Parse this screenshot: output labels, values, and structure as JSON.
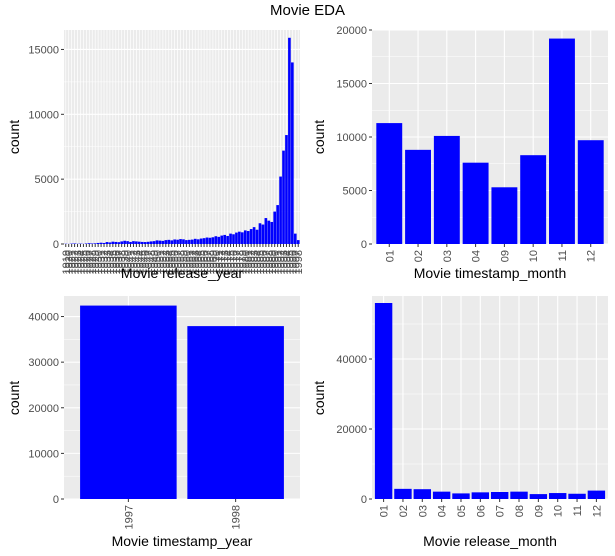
{
  "figure": {
    "title": "Movie EDA"
  },
  "colors": {
    "bar": "#0000ff",
    "panel_bg": "#ebebeb",
    "grid": "#ffffff",
    "tick_text": "#4d4d4d",
    "tick_mark": "#333333"
  },
  "chart_data": [
    {
      "type": "bar",
      "title": "",
      "xlabel": "Movie release_year",
      "ylabel": "count",
      "ylim": [
        0,
        16500
      ],
      "yticks": [
        0,
        5000,
        10000,
        15000
      ],
      "x_tick_labels_legible": false,
      "categories": [
        "1919",
        "1920",
        "1921",
        "1922",
        "1923",
        "1924",
        "1925",
        "1926",
        "1927",
        "1928",
        "1929",
        "1930",
        "1931",
        "1932",
        "1933",
        "1934",
        "1935",
        "1936",
        "1937",
        "1938",
        "1939",
        "1940",
        "1941",
        "1942",
        "1943",
        "1944",
        "1945",
        "1946",
        "1947",
        "1948",
        "1949",
        "1950",
        "1951",
        "1952",
        "1953",
        "1954",
        "1955",
        "1956",
        "1957",
        "1958",
        "1959",
        "1960",
        "1961",
        "1962",
        "1963",
        "1964",
        "1965",
        "1966",
        "1967",
        "1968",
        "1969",
        "1970",
        "1971",
        "1972",
        "1973",
        "1974",
        "1975",
        "1976",
        "1977",
        "1978",
        "1979",
        "1980",
        "1981",
        "1982",
        "1983",
        "1984",
        "1985",
        "1986",
        "1987",
        "1988",
        "1989",
        "1990",
        "1991",
        "1992",
        "1993",
        "1994",
        "1995",
        "1996",
        "1997",
        "1998"
      ],
      "values": [
        20,
        10,
        30,
        40,
        20,
        30,
        15,
        40,
        60,
        40,
        50,
        80,
        100,
        80,
        150,
        120,
        180,
        160,
        140,
        200,
        250,
        220,
        160,
        220,
        200,
        180,
        160,
        150,
        170,
        200,
        220,
        280,
        260,
        240,
        300,
        320,
        280,
        350,
        330,
        380,
        360,
        300,
        320,
        340,
        400,
        360,
        420,
        450,
        500,
        480,
        520,
        600,
        550,
        650,
        700,
        620,
        800,
        750,
        880,
        950,
        900,
        1050,
        1000,
        1150,
        1300,
        1100,
        1600,
        1500,
        2000,
        1800,
        1700,
        2500,
        3000,
        5200,
        7200,
        8400,
        15900,
        14000,
        800,
        300
      ]
    },
    {
      "type": "bar",
      "title": "",
      "xlabel": "Movie timestamp_month",
      "ylabel": "count",
      "ylim": [
        0,
        20000
      ],
      "yticks": [
        0,
        5000,
        10000,
        15000,
        20000
      ],
      "categories": [
        "01",
        "02",
        "03",
        "04",
        "09",
        "10",
        "11",
        "12"
      ],
      "values": [
        11300,
        8800,
        10100,
        7600,
        5300,
        8300,
        19200,
        9700
      ]
    },
    {
      "type": "bar",
      "title": "",
      "xlabel": "Movie timestamp_year",
      "ylabel": "count",
      "ylim": [
        0,
        44500
      ],
      "yticks": [
        0,
        10000,
        20000,
        30000,
        40000
      ],
      "categories": [
        "1997",
        "1998"
      ],
      "values": [
        42400,
        37900
      ]
    },
    {
      "type": "bar",
      "title": "",
      "xlabel": "Movie release_month",
      "ylabel": "count",
      "ylim": [
        0,
        58000
      ],
      "yticks": [
        0,
        20000,
        40000
      ],
      "categories": [
        "01",
        "02",
        "03",
        "04",
        "05",
        "06",
        "07",
        "08",
        "09",
        "10",
        "11",
        "12"
      ],
      "values": [
        56000,
        2900,
        2800,
        2100,
        1600,
        1900,
        2000,
        2100,
        1400,
        1700,
        1500,
        2400
      ]
    }
  ]
}
